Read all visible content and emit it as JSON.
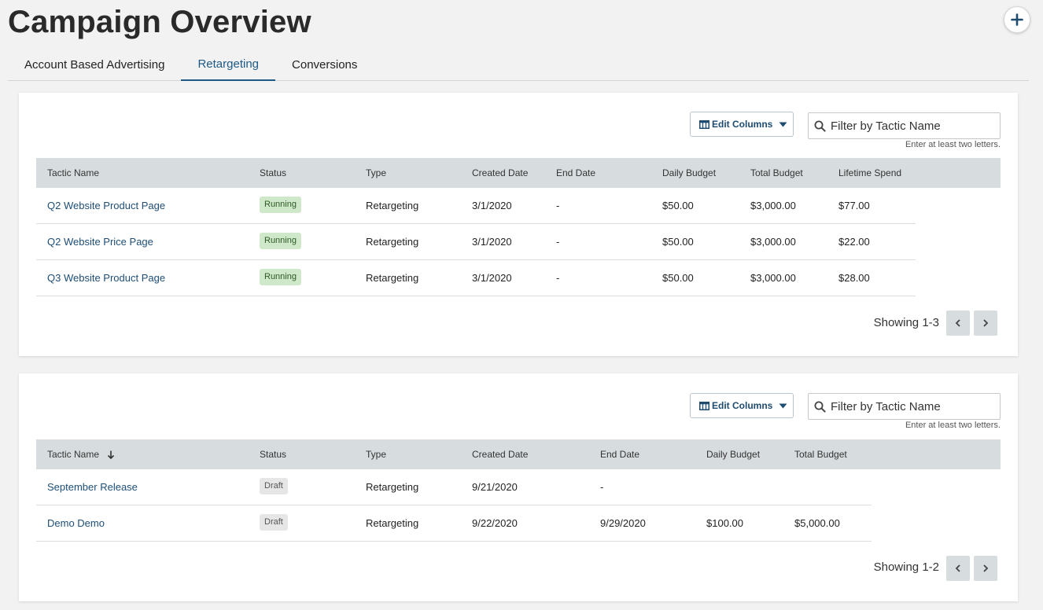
{
  "page": {
    "title": "Campaign Overview",
    "add_button": "add-icon"
  },
  "tabs": [
    {
      "label": "Account Based Advertising",
      "active": false
    },
    {
      "label": "Retargeting",
      "active": true
    },
    {
      "label": "Conversions",
      "active": false
    }
  ],
  "colors": {
    "accent": "#1e5a86",
    "link": "#1d4e78",
    "header_bg": "#d7dcdf",
    "running_badge": "#cfe8c9",
    "draft_badge": "#e6e6e6"
  },
  "table1": {
    "edit_columns_label": "Edit Columns",
    "filter_placeholder": "Filter by Tactic Name",
    "filter_hint": "Enter at least two letters.",
    "columns": [
      "Tactic Name",
      "Status",
      "Type",
      "Created Date",
      "End Date",
      "Daily Budget",
      "Total Budget",
      "Lifetime Spend"
    ],
    "rows": [
      {
        "name": "Q2 Website Product Page",
        "status": "Running",
        "type": "Retargeting",
        "created": "3/1/2020",
        "end": "-",
        "daily": "$50.00",
        "total": "$3,000.00",
        "lifetime": "$77.00"
      },
      {
        "name": "Q2 Website Price Page",
        "status": "Running",
        "type": "Retargeting",
        "created": "3/1/2020",
        "end": "-",
        "daily": "$50.00",
        "total": "$3,000.00",
        "lifetime": "$22.00"
      },
      {
        "name": "Q3 Website Product Page",
        "status": "Running",
        "type": "Retargeting",
        "created": "3/1/2020",
        "end": "-",
        "daily": "$50.00",
        "total": "$3,000.00",
        "lifetime": "$28.00"
      }
    ],
    "showing": "Showing 1-3"
  },
  "table2": {
    "edit_columns_label": "Edit Columns",
    "filter_placeholder": "Filter by Tactic Name",
    "filter_hint": "Enter at least two letters.",
    "columns": [
      "Tactic Name",
      "Status",
      "Type",
      "Created Date",
      "End Date",
      "Daily Budget",
      "Total Budget"
    ],
    "sort_icon": "arrow-down-icon",
    "rows": [
      {
        "name": "September Release",
        "status": "Draft",
        "type": "Retargeting",
        "created": "9/21/2020",
        "end": "-",
        "daily": "",
        "total": ""
      },
      {
        "name": "Demo Demo",
        "status": "Draft",
        "type": "Retargeting",
        "created": "9/22/2020",
        "end": "9/29/2020",
        "daily": "$100.00",
        "total": "$5,000.00"
      }
    ],
    "showing": "Showing 1-2"
  }
}
